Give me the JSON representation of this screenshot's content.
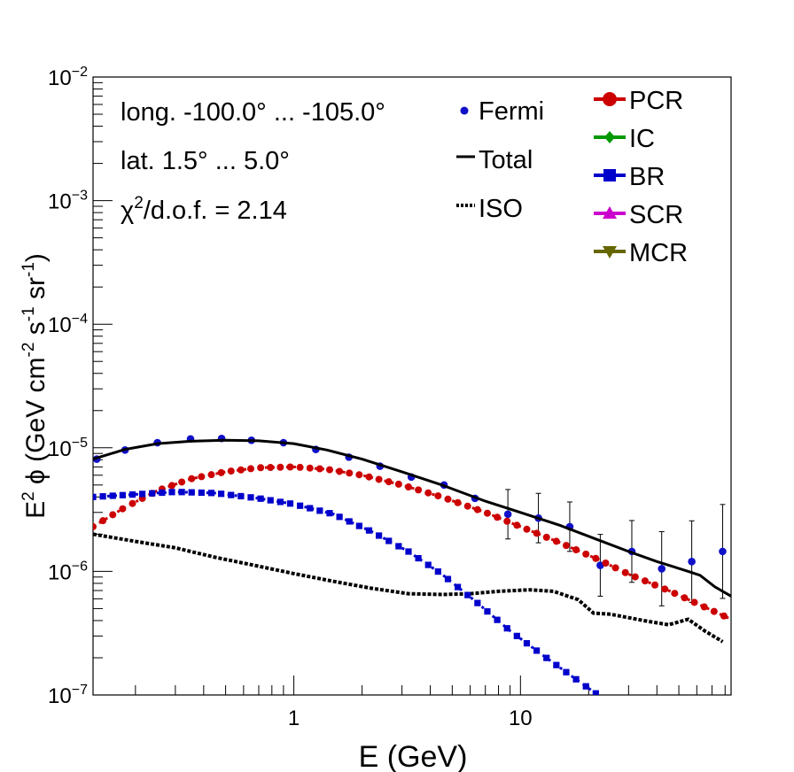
{
  "chart_data": {
    "type": "scatter",
    "x_scale": "log",
    "y_scale": "log",
    "xlim": [
      0.13,
      85
    ],
    "ylim": [
      1e-07,
      0.01
    ],
    "xlabel": "E (GeV)",
    "ylabel_main": "E",
    "ylabel_sup": "2",
    "ylabel_rest": " ϕ (GeV cm",
    "ylabel_s1": "-2",
    "ylabel_s": " s",
    "ylabel_s2": "-1",
    "ylabel_sr": " sr",
    "ylabel_s3": "-1",
    "ylabel_end": ")",
    "x_tick_labels": [
      {
        "value": 1,
        "label": "1"
      },
      {
        "value": 10,
        "label": "10"
      }
    ],
    "y_tick_labels": [
      {
        "value": 1e-07,
        "base": "10",
        "exp": "−7"
      },
      {
        "value": 1e-06,
        "base": "10",
        "exp": "−6"
      },
      {
        "value": 1e-05,
        "base": "10",
        "exp": "−5"
      },
      {
        "value": 0.0001,
        "base": "10",
        "exp": "−4"
      },
      {
        "value": 0.001,
        "base": "10",
        "exp": "−3"
      },
      {
        "value": 0.01,
        "base": "10",
        "exp": "−2"
      }
    ],
    "annotations": {
      "longitude": "long. -100.0° ... -105.0°",
      "latitude": "lat. 1.5° ... 5.0°",
      "chi2_prefix": "χ",
      "chi2_sup": "2",
      "chi2_rest": "/d.o.f. = 2.14"
    },
    "legend_left": [
      {
        "name": "Fermi",
        "style": "marker-circle",
        "color": "#1010c8"
      },
      {
        "name": "Total",
        "style": "solid",
        "color": "#000000"
      },
      {
        "name": "ISO",
        "style": "dotted",
        "color": "#000000"
      }
    ],
    "legend_right": [
      {
        "name": "PCR",
        "style": "circle",
        "color": "#cc0000"
      },
      {
        "name": "IC",
        "style": "diamond",
        "color": "#009900"
      },
      {
        "name": "BR",
        "style": "square",
        "color": "#0000cc"
      },
      {
        "name": "SCR",
        "style": "triangle-up",
        "color": "#cc00cc"
      },
      {
        "name": "MCR",
        "style": "triangle-down",
        "color": "#666600"
      }
    ],
    "series": [
      {
        "name": "Fermi",
        "kind": "points",
        "color": "#1010c8",
        "points": [
          [
            0.135,
            8.1e-06,
            0
          ],
          [
            0.18,
            9.6e-06,
            0
          ],
          [
            0.25,
            1.1e-05,
            0
          ],
          [
            0.35,
            1.18e-05,
            0
          ],
          [
            0.48,
            1.19e-05,
            0
          ],
          [
            0.65,
            1.15e-05,
            0
          ],
          [
            0.9,
            1.1e-05,
            0
          ],
          [
            1.25,
            9.7e-06,
            0
          ],
          [
            1.75,
            8.4e-06,
            0
          ],
          [
            2.4,
            7.1e-06,
            0
          ],
          [
            3.3,
            5.8e-06,
            0
          ],
          [
            4.6,
            5e-06,
            0
          ],
          [
            6.3,
            3.9e-06,
            0
          ],
          [
            8.8,
            2.9e-06,
            0.2
          ],
          [
            12,
            2.7e-06,
            0.2
          ],
          [
            16.5,
            2.3e-06,
            0.2
          ],
          [
            22.5,
            1.12e-06,
            0.25
          ],
          [
            31,
            1.45e-06,
            0.25
          ],
          [
            42,
            1.05e-06,
            0.3
          ],
          [
            57,
            1.2e-06,
            0.33
          ],
          [
            78,
            1.45e-06,
            0.38
          ]
        ]
      },
      {
        "name": "Total",
        "kind": "line",
        "color": "#000000",
        "points": [
          [
            0.13,
            8.1e-06
          ],
          [
            0.18,
            9.7e-06
          ],
          [
            0.25,
            1.08e-05
          ],
          [
            0.35,
            1.13e-05
          ],
          [
            0.5,
            1.15e-05
          ],
          [
            0.7,
            1.14e-05
          ],
          [
            1.0,
            1.08e-05
          ],
          [
            1.4,
            9.6e-06
          ],
          [
            2.0,
            8.1e-06
          ],
          [
            3.0,
            6.4e-06
          ],
          [
            4.5,
            5e-06
          ],
          [
            7,
            3.7e-06
          ],
          [
            10,
            3e-06
          ],
          [
            15,
            2.35e-06
          ],
          [
            22,
            1.8e-06
          ],
          [
            30,
            1.45e-06
          ],
          [
            40,
            1.2e-06
          ],
          [
            55,
            1e-06
          ],
          [
            62,
            9.3e-07
          ],
          [
            72,
            7.5e-07
          ],
          [
            85,
            6.3e-07
          ]
        ]
      },
      {
        "name": "ISO",
        "kind": "dotted",
        "color": "#000000",
        "points": [
          [
            0.13,
            2e-06
          ],
          [
            0.2,
            1.75e-06
          ],
          [
            0.3,
            1.55e-06
          ],
          [
            0.45,
            1.3e-06
          ],
          [
            0.7,
            1.1e-06
          ],
          [
            1.0,
            9.6e-07
          ],
          [
            1.5,
            8.3e-07
          ],
          [
            2.2,
            7.3e-07
          ],
          [
            3.2,
            6.6e-07
          ],
          [
            4.5,
            6.5e-07
          ],
          [
            6,
            6.6e-07
          ],
          [
            8,
            6.9e-07
          ],
          [
            11,
            7.1e-07
          ],
          [
            14,
            6.9e-07
          ],
          [
            18,
            5.9e-07
          ],
          [
            21,
            4.6e-07
          ],
          [
            25,
            4.5e-07
          ],
          [
            35,
            4e-07
          ],
          [
            45,
            3.7e-07
          ],
          [
            55,
            4.1e-07
          ],
          [
            65,
            3.3e-07
          ],
          [
            78,
            2.7e-07
          ]
        ]
      },
      {
        "name": "PCR",
        "kind": "markers",
        "marker": "circle",
        "color": "#cc0000",
        "points": [
          [
            0.13,
            2.3e-06
          ],
          [
            0.18,
            3.3e-06
          ],
          [
            0.25,
            4.5e-06
          ],
          [
            0.35,
            5.6e-06
          ],
          [
            0.5,
            6.4e-06
          ],
          [
            0.7,
            6.9e-06
          ],
          [
            1.0,
            7e-06
          ],
          [
            1.4,
            6.7e-06
          ],
          [
            2.0,
            6e-06
          ],
          [
            3.0,
            5e-06
          ],
          [
            4.5,
            4e-06
          ],
          [
            7,
            3e-06
          ],
          [
            10,
            2.3e-06
          ],
          [
            15,
            1.7e-06
          ],
          [
            22,
            1.25e-06
          ],
          [
            30,
            9.5e-07
          ],
          [
            45,
            7e-07
          ],
          [
            60,
            5.5e-07
          ],
          [
            85,
            4.1e-07
          ]
        ]
      },
      {
        "name": "BR",
        "kind": "markers",
        "marker": "square",
        "color": "#0000cc",
        "points": [
          [
            0.13,
            4e-06
          ],
          [
            0.2,
            4.2e-06
          ],
          [
            0.3,
            4.4e-06
          ],
          [
            0.45,
            4.3e-06
          ],
          [
            0.7,
            3.9e-06
          ],
          [
            1.0,
            3.5e-06
          ],
          [
            1.5,
            2.9e-06
          ],
          [
            2.2,
            2.1e-06
          ],
          [
            3.2,
            1.45e-06
          ],
          [
            4.5,
            9.5e-07
          ],
          [
            6.5,
            5.5e-07
          ],
          [
            9,
            3.3e-07
          ],
          [
            13,
            2e-07
          ],
          [
            18,
            1.3e-07
          ],
          [
            22,
            1e-07
          ]
        ]
      }
    ]
  }
}
